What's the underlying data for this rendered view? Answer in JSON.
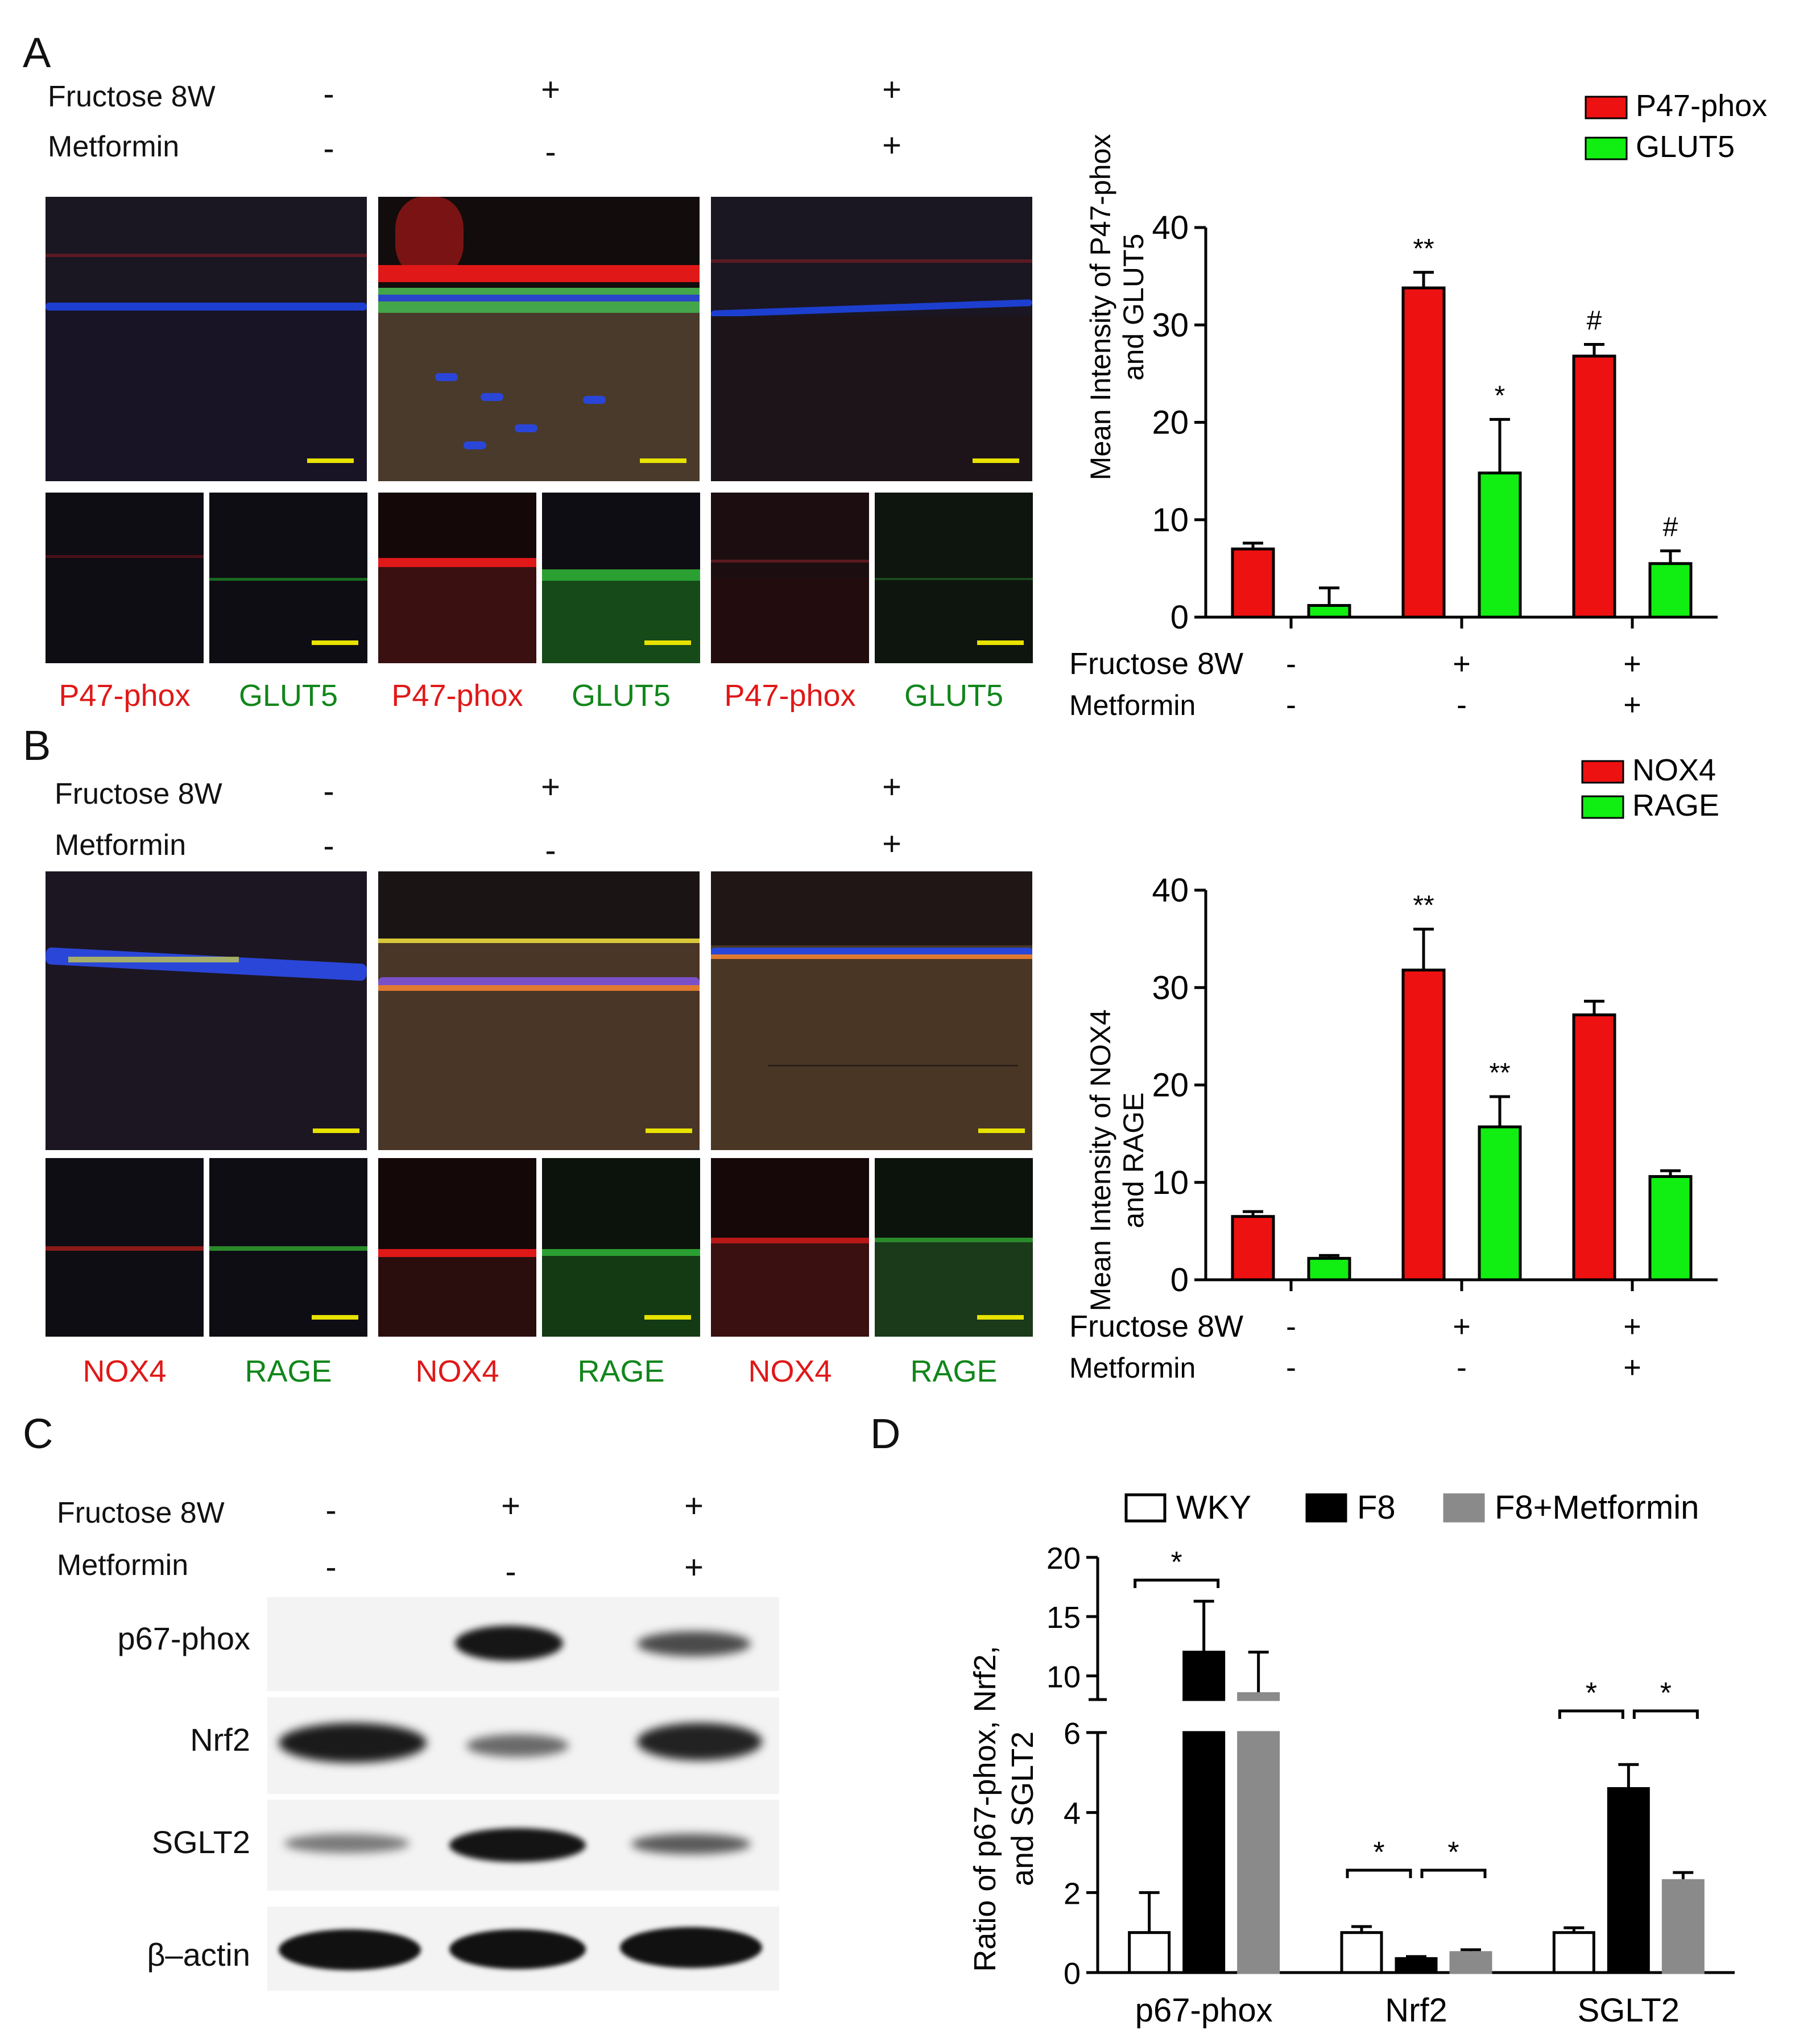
{
  "panels": {
    "A": "A",
    "B": "B",
    "C": "C",
    "D": "D"
  },
  "treatments": {
    "fructose": "Fructose 8W",
    "metformin": "Metformin",
    "groups": [
      {
        "fructose": "-",
        "metformin": "-"
      },
      {
        "fructose": "+",
        "metformin": "-"
      },
      {
        "fructose": "+",
        "metformin": "+"
      }
    ]
  },
  "stain_labels": {
    "A": [
      "P47-phox",
      "GLUT5",
      "P47-phox",
      "GLUT5",
      "P47-phox",
      "GLUT5"
    ],
    "B": [
      "NOX4",
      "RAGE",
      "NOX4",
      "RAGE",
      "NOX4",
      "RAGE"
    ]
  },
  "colors": {
    "red": "#ee1111",
    "green": "#11ee11",
    "black": "#000000",
    "gray": "#8a8a8a",
    "white": "#ffffff",
    "scalebar": "#e8e200"
  },
  "western": {
    "labels": [
      "p67-phox",
      "Nrf2",
      "SGLT2",
      "β–actin"
    ]
  },
  "chart_data": [
    {
      "id": "A",
      "type": "bar",
      "ylabel": "Mean Intensity of P47-phox and GLUT5",
      "ylim": [
        0,
        40
      ],
      "yticks": [
        "0",
        "10",
        "20",
        "30",
        "40"
      ],
      "categories": [
        "-/-",
        "+/-",
        "+/+"
      ],
      "row_labels": [
        "Fructose 8W",
        "Metformin"
      ],
      "row_values": [
        [
          "-",
          "+",
          "+"
        ],
        [
          "-",
          "-",
          "+"
        ]
      ],
      "series": [
        {
          "name": "P47-phox",
          "color": "#ee1111",
          "values": [
            7.0,
            33.8,
            26.8
          ],
          "errors": [
            0.6,
            1.6,
            1.2
          ],
          "annot": [
            "",
            "**",
            "#"
          ]
        },
        {
          "name": "GLUT5",
          "color": "#11ee11",
          "values": [
            1.2,
            14.8,
            5.5
          ],
          "errors": [
            1.8,
            5.5,
            1.3
          ],
          "annot": [
            "",
            "*",
            "#"
          ]
        }
      ],
      "legend": "top-right"
    },
    {
      "id": "B",
      "type": "bar",
      "ylabel": "Mean Intensity of NOX4 and RAGE",
      "ylim": [
        0,
        40
      ],
      "yticks": [
        "0",
        "10",
        "20",
        "30",
        "40"
      ],
      "categories": [
        "-/-",
        "+/-",
        "+/+"
      ],
      "row_labels": [
        "Fructose 8W",
        "Metformin"
      ],
      "row_values": [
        [
          "-",
          "+",
          "+"
        ],
        [
          "-",
          "-",
          "+"
        ]
      ],
      "series": [
        {
          "name": "NOX4",
          "color": "#ee1111",
          "values": [
            6.5,
            31.8,
            27.2
          ],
          "errors": [
            0.5,
            4.2,
            1.4
          ],
          "annot": [
            "",
            "**",
            ""
          ]
        },
        {
          "name": "RAGE",
          "color": "#11ee11",
          "values": [
            2.2,
            15.7,
            10.6
          ],
          "errors": [
            0.3,
            3.1,
            0.6
          ],
          "annot": [
            "",
            "**",
            ""
          ]
        }
      ],
      "legend": "top-right"
    },
    {
      "id": "D",
      "type": "bar",
      "ylabel": "Ratio of p67-phox, Nrf2, and SGLT2",
      "axis_break": true,
      "ylim_lower": [
        0,
        6
      ],
      "ylim_upper": [
        8,
        20
      ],
      "yticks_lower": [
        "0",
        "2",
        "4",
        "6"
      ],
      "yticks_upper": [
        "10",
        "15",
        "20"
      ],
      "categories": [
        "p67-phox",
        "Nrf2",
        "SGLT2"
      ],
      "series": [
        {
          "name": "WKY",
          "color": "#ffffff",
          "values": [
            1.0,
            1.0,
            1.0
          ],
          "errors": [
            1.0,
            0.15,
            0.12
          ]
        },
        {
          "name": "F8",
          "color": "#000000",
          "values": [
            12.0,
            0.35,
            4.6
          ],
          "errors": [
            4.3,
            0.05,
            0.6
          ]
        },
        {
          "name": "F8+Metformin",
          "color": "#8a8a8a",
          "values": [
            8.5,
            0.5,
            2.3
          ],
          "errors": [
            3.5,
            0.07,
            0.2
          ]
        }
      ],
      "significance": "*",
      "legend": "top"
    }
  ]
}
